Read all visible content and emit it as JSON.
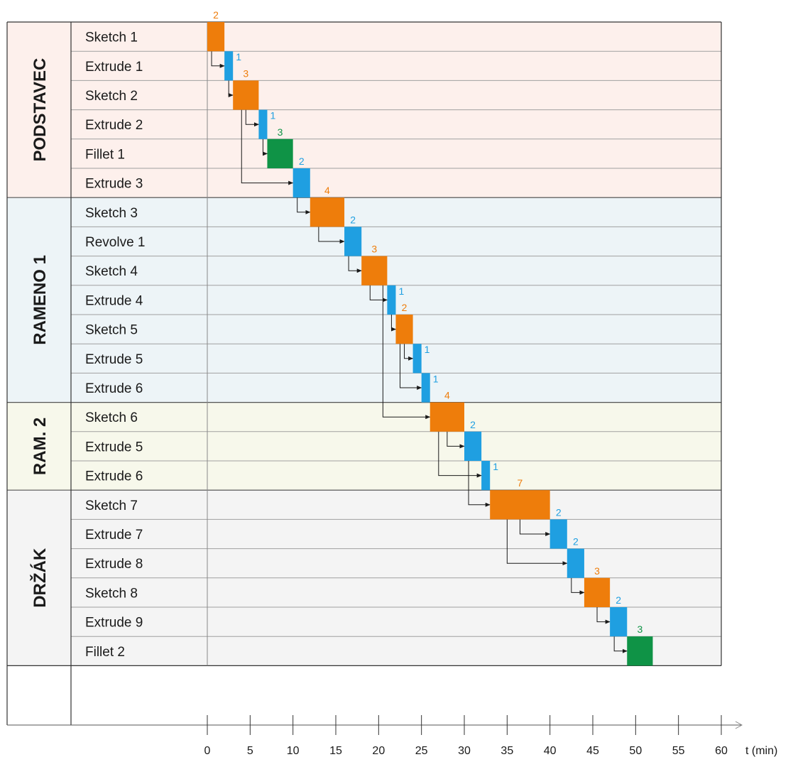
{
  "chart_data": {
    "type": "gantt",
    "xlabel": "t (min)",
    "xlim": [
      0,
      60
    ],
    "x_ticks": [
      "0",
      "5",
      "10",
      "15",
      "20",
      "25",
      "30",
      "35",
      "40",
      "45",
      "50",
      "55",
      "60"
    ],
    "colors": {
      "sketch": "#ee7d0b",
      "extrude": "#1f9fe1",
      "fillet": "#0f9346",
      "podstavec_bg": "#fdf0ec",
      "rameno1_bg": "#edf4f7",
      "ram2_bg": "#f7f8eb",
      "drzak_bg": "#f4f4f4",
      "grid": "#888888"
    },
    "groups": [
      {
        "label": "PODSTAVEC",
        "first_row": 0,
        "row_count": 6,
        "color_key": "podstavec_bg"
      },
      {
        "label": "RAMENO 1",
        "first_row": 6,
        "row_count": 7,
        "color_key": "rameno1_bg"
      },
      {
        "label": "RAM. 2",
        "first_row": 13,
        "row_count": 3,
        "color_key": "ram2_bg"
      },
      {
        "label": "DRŽÁK",
        "first_row": 16,
        "row_count": 6,
        "color_key": "drzak_bg"
      }
    ],
    "tasks": [
      {
        "label": "Sketch 1",
        "kind": "sketch",
        "start": 0,
        "duration": 2,
        "duration_label": "2"
      },
      {
        "label": "Extrude 1",
        "kind": "extrude",
        "start": 2,
        "duration": 1,
        "duration_label": "1"
      },
      {
        "label": "Sketch 2",
        "kind": "sketch",
        "start": 3,
        "duration": 3,
        "duration_label": "3"
      },
      {
        "label": "Extrude 2",
        "kind": "extrude",
        "start": 6,
        "duration": 1,
        "duration_label": "1"
      },
      {
        "label": "Fillet 1",
        "kind": "fillet",
        "start": 7,
        "duration": 3,
        "duration_label": "3"
      },
      {
        "label": "Extrude 3",
        "kind": "extrude",
        "start": 10,
        "duration": 2,
        "duration_label": "2"
      },
      {
        "label": "Sketch 3",
        "kind": "sketch",
        "start": 12,
        "duration": 4,
        "duration_label": "4"
      },
      {
        "label": "Revolve 1",
        "kind": "extrude",
        "start": 16,
        "duration": 2,
        "duration_label": "2"
      },
      {
        "label": "Sketch 4",
        "kind": "sketch",
        "start": 18,
        "duration": 3,
        "duration_label": "3"
      },
      {
        "label": "Extrude 4",
        "kind": "extrude",
        "start": 21,
        "duration": 1,
        "duration_label": "1"
      },
      {
        "label": "Sketch 5",
        "kind": "sketch",
        "start": 22,
        "duration": 2,
        "duration_label": "2"
      },
      {
        "label": "Extrude 5",
        "kind": "extrude",
        "start": 24,
        "duration": 1,
        "duration_label": "1"
      },
      {
        "label": "Extrude 6",
        "kind": "extrude",
        "start": 25,
        "duration": 1,
        "duration_label": "1"
      },
      {
        "label": "Sketch 6",
        "kind": "sketch",
        "start": 26,
        "duration": 4,
        "duration_label": "4"
      },
      {
        "label": "Extrude 5",
        "kind": "extrude",
        "start": 30,
        "duration": 2,
        "duration_label": "2"
      },
      {
        "label": "Extrude 6",
        "kind": "extrude",
        "start": 32,
        "duration": 1,
        "duration_label": "1"
      },
      {
        "label": "Sketch 7",
        "kind": "sketch",
        "start": 33,
        "duration": 7,
        "duration_label": "7"
      },
      {
        "label": "Extrude 7",
        "kind": "extrude",
        "start": 40,
        "duration": 2,
        "duration_label": "2"
      },
      {
        "label": "Extrude 8",
        "kind": "extrude",
        "start": 42,
        "duration": 2,
        "duration_label": "2"
      },
      {
        "label": "Sketch 8",
        "kind": "sketch",
        "start": 44,
        "duration": 3,
        "duration_label": "3"
      },
      {
        "label": "Extrude 9",
        "kind": "extrude",
        "start": 47,
        "duration": 2,
        "duration_label": "2"
      },
      {
        "label": "Fillet 2",
        "kind": "fillet",
        "start": 49,
        "duration": 3,
        "duration_label": "3"
      }
    ],
    "dependencies": [
      {
        "from": 0,
        "to": 1,
        "at": 0.5
      },
      {
        "from": 1,
        "to": 2,
        "at": 2.5
      },
      {
        "from": 2,
        "to": 3,
        "at": 4.5
      },
      {
        "from": 2,
        "to": 5,
        "at": 4
      },
      {
        "from": 3,
        "to": 4,
        "at": 6.5
      },
      {
        "from": 5,
        "to": 6,
        "at": 10.5
      },
      {
        "from": 6,
        "to": 7,
        "at": 13
      },
      {
        "from": 7,
        "to": 8,
        "at": 16.5
      },
      {
        "from": 8,
        "to": 9,
        "at": 19
      },
      {
        "from": 8,
        "to": 13,
        "at": 20.5
      },
      {
        "from": 9,
        "to": 10,
        "at": 21.5
      },
      {
        "from": 10,
        "to": 11,
        "at": 23
      },
      {
        "from": 10,
        "to": 12,
        "at": 22.5
      },
      {
        "from": 13,
        "to": 14,
        "at": 28
      },
      {
        "from": 13,
        "to": 15,
        "at": 27
      },
      {
        "from": 14,
        "to": 16,
        "at": 30.5
      },
      {
        "from": 16,
        "to": 17,
        "at": 36.5
      },
      {
        "from": 16,
        "to": 18,
        "at": 35
      },
      {
        "from": 18,
        "to": 19,
        "at": 42.5
      },
      {
        "from": 19,
        "to": 20,
        "at": 45.5
      },
      {
        "from": 20,
        "to": 21,
        "at": 47.5
      }
    ]
  }
}
